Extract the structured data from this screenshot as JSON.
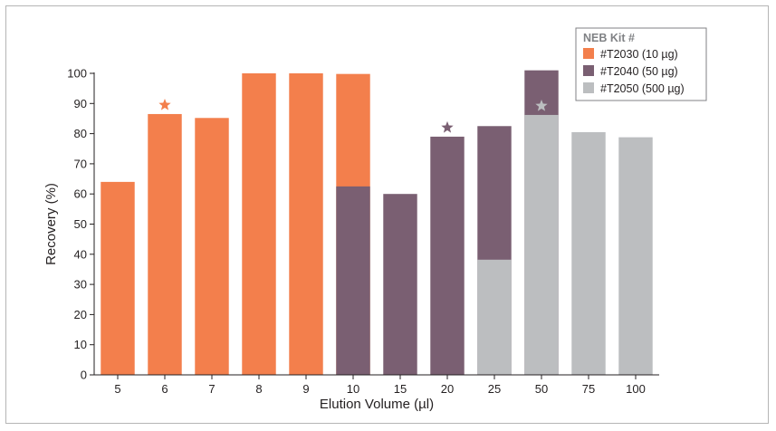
{
  "chart_data": {
    "type": "bar",
    "xlabel": "Elution Volume (µl)",
    "ylabel": "Recovery (%)",
    "ylim": [
      0,
      100
    ],
    "yticks": [
      0,
      10,
      20,
      30,
      40,
      50,
      60,
      70,
      80,
      90,
      100
    ],
    "categories": [
      "5",
      "6",
      "7",
      "8",
      "9",
      "10",
      "15",
      "20",
      "25",
      "50",
      "75",
      "100"
    ],
    "legend_title": "NEB Kit #",
    "legend_position": "top-right",
    "grid": false,
    "series": [
      {
        "name": "#T2030 (10 µg)",
        "color": "#f37f4c",
        "values": [
          64,
          86.5,
          85.2,
          100,
          100,
          99.8,
          null,
          null,
          null,
          null,
          null,
          null
        ],
        "starred_category": "6"
      },
      {
        "name": "#T2040 (50 µg)",
        "color": "#7a5f72",
        "values": [
          null,
          null,
          null,
          null,
          null,
          62.5,
          60,
          79,
          82.5,
          101,
          null,
          null
        ],
        "starred_category": "20"
      },
      {
        "name": "#T2050 (500 µg)",
        "color": "#bcbec0",
        "values": [
          null,
          null,
          null,
          null,
          null,
          null,
          null,
          null,
          38.2,
          86.2,
          80.5,
          78.8
        ],
        "starred_category": "50"
      }
    ]
  }
}
